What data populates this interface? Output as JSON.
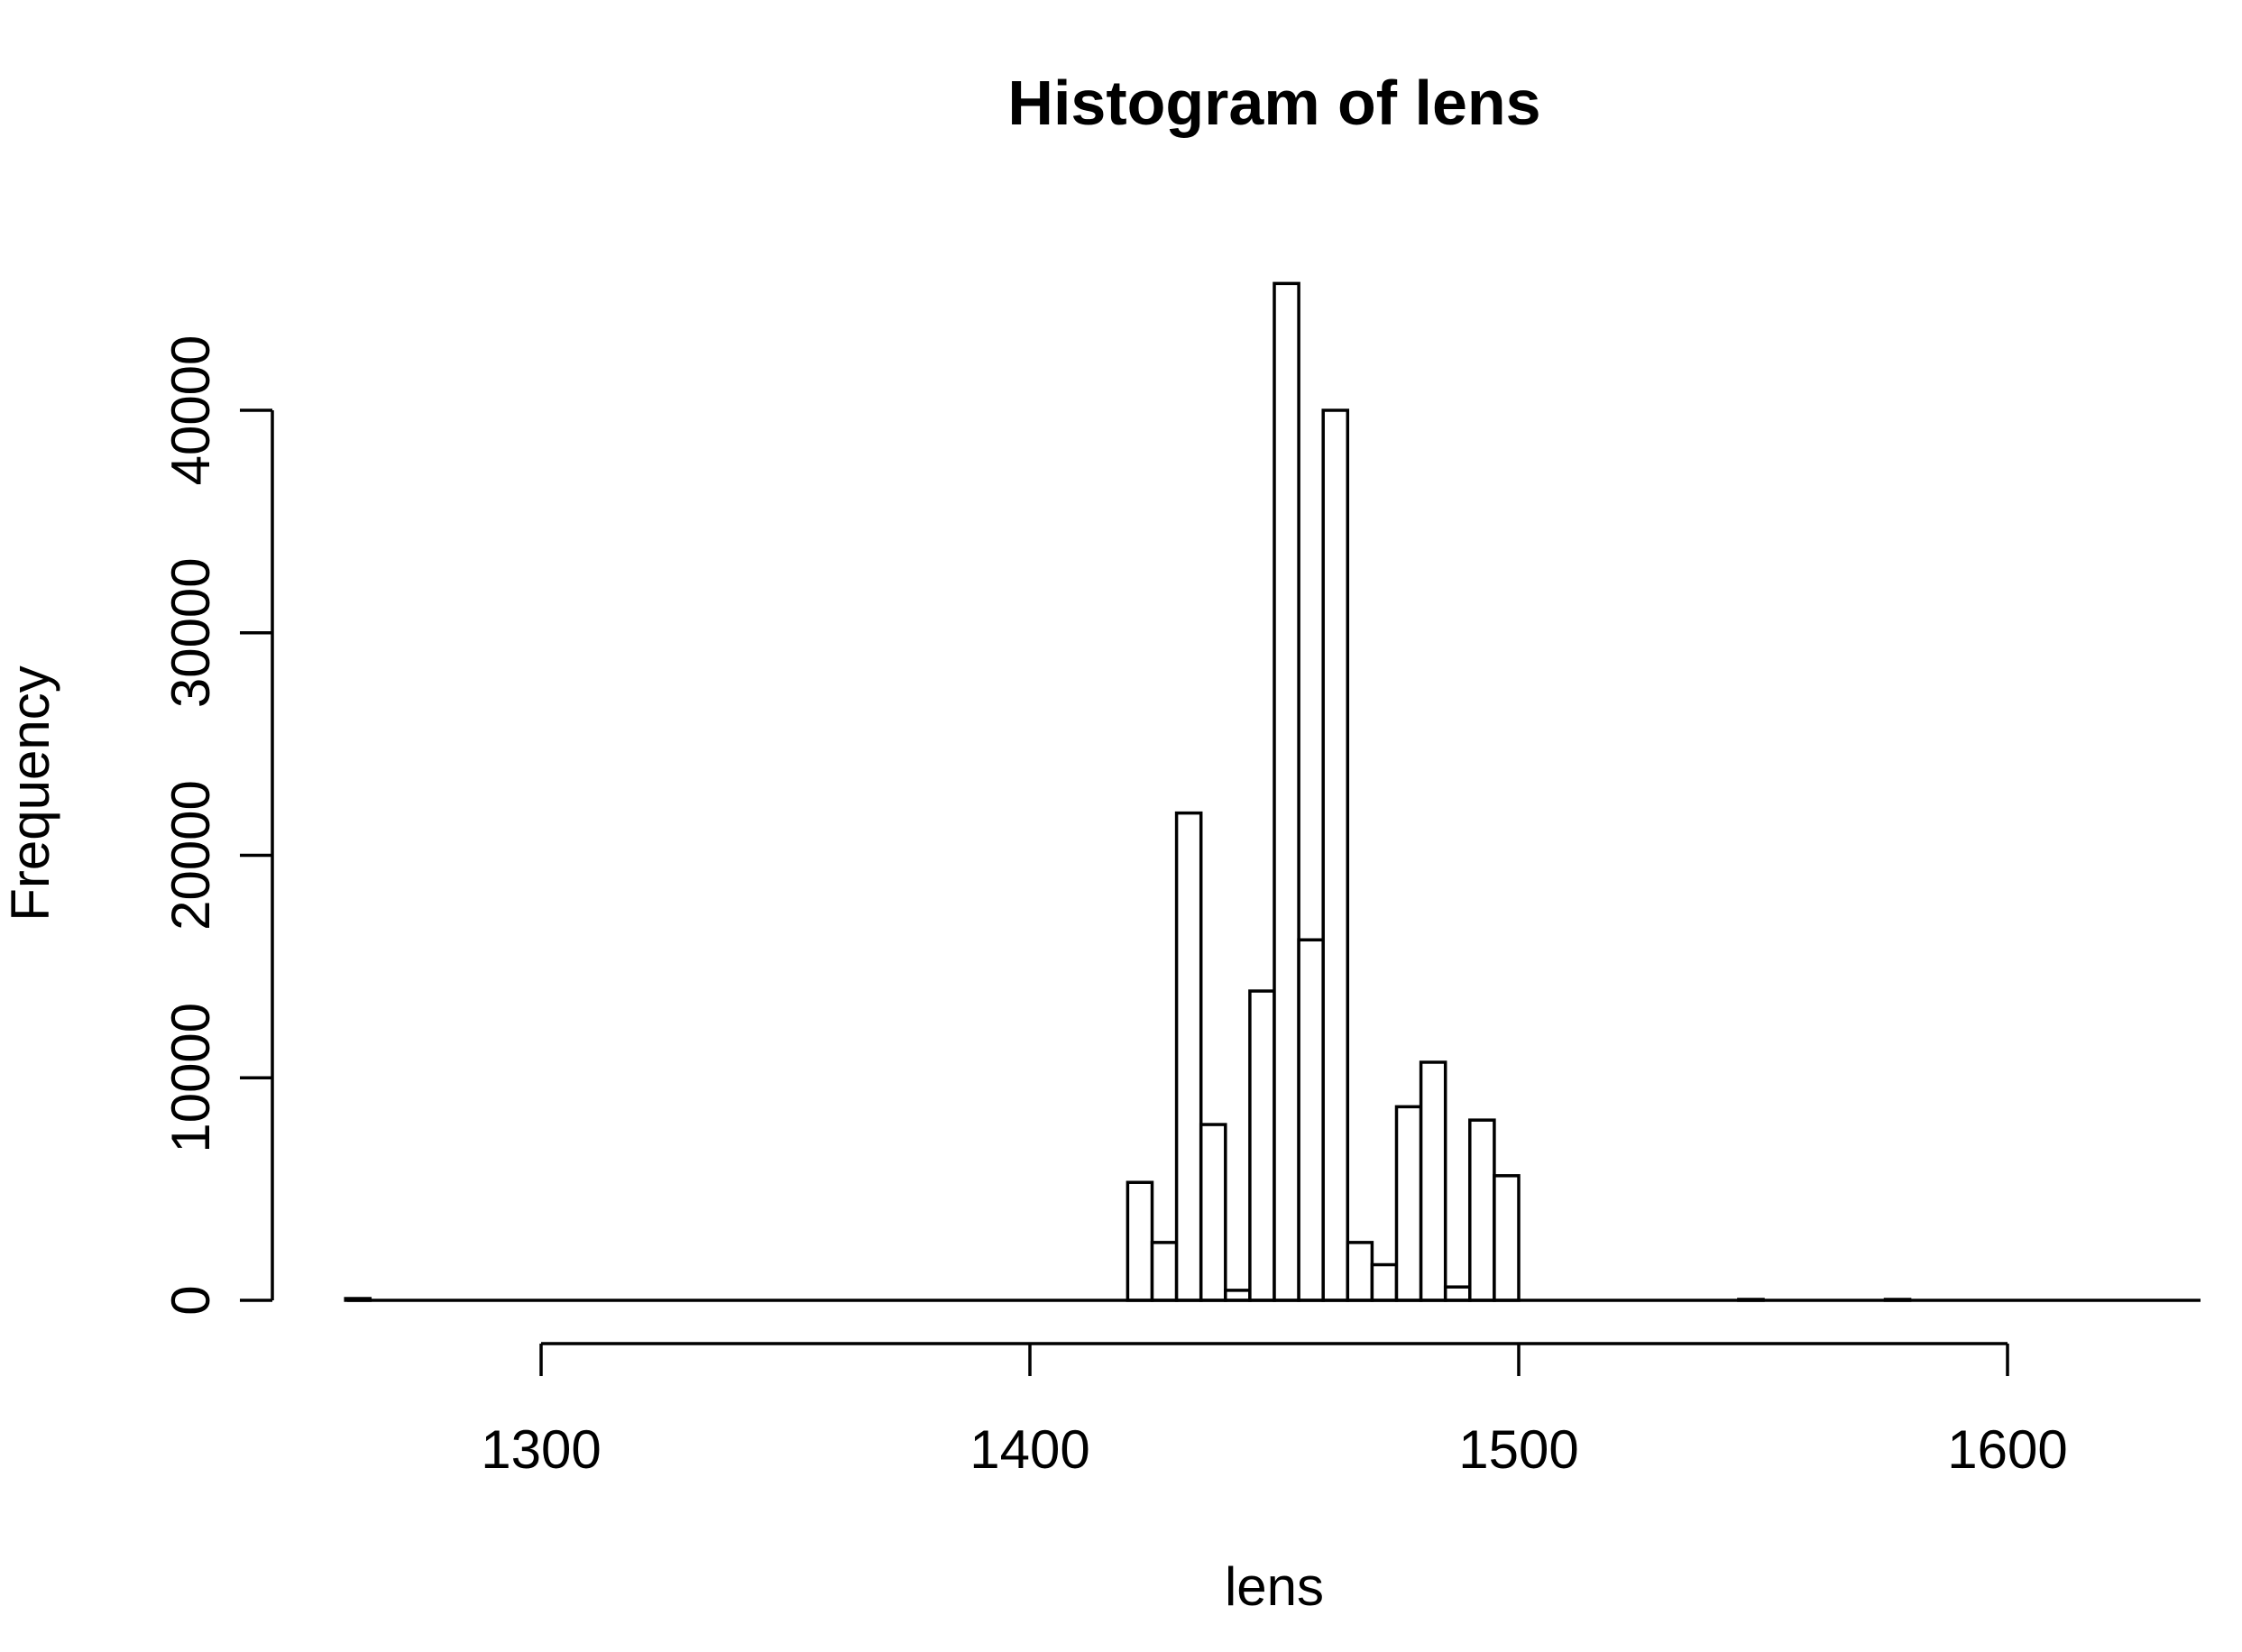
{
  "chart_data": {
    "type": "bar",
    "title": "Histogram of lens",
    "xlabel": "lens",
    "ylabel": "Frequency",
    "bin_width": 5,
    "xlim": [
      1260,
      1645
    ],
    "ylim": [
      0,
      46000
    ],
    "x_ticks": [
      1300,
      1400,
      1500,
      1600
    ],
    "y_ticks": [
      0,
      10000,
      20000,
      30000,
      40000
    ],
    "grid": false,
    "bins": [
      {
        "start": 1260,
        "end": 1265,
        "count": 80
      },
      {
        "start": 1420,
        "end": 1425,
        "count": 5300
      },
      {
        "start": 1425,
        "end": 1430,
        "count": 2600
      },
      {
        "start": 1430,
        "end": 1435,
        "count": 21900
      },
      {
        "start": 1435,
        "end": 1440,
        "count": 7900
      },
      {
        "start": 1440,
        "end": 1445,
        "count": 450
      },
      {
        "start": 1445,
        "end": 1450,
        "count": 13900
      },
      {
        "start": 1450,
        "end": 1455,
        "count": 45700
      },
      {
        "start": 1455,
        "end": 1460,
        "count": 16200
      },
      {
        "start": 1460,
        "end": 1465,
        "count": 40000
      },
      {
        "start": 1465,
        "end": 1470,
        "count": 2600
      },
      {
        "start": 1470,
        "end": 1475,
        "count": 1600
      },
      {
        "start": 1475,
        "end": 1480,
        "count": 8700
      },
      {
        "start": 1480,
        "end": 1485,
        "count": 10700
      },
      {
        "start": 1485,
        "end": 1490,
        "count": 600
      },
      {
        "start": 1490,
        "end": 1495,
        "count": 8100
      },
      {
        "start": 1495,
        "end": 1500,
        "count": 5600
      },
      {
        "start": 1545,
        "end": 1550,
        "count": 20
      },
      {
        "start": 1575,
        "end": 1580,
        "count": 20
      }
    ]
  }
}
